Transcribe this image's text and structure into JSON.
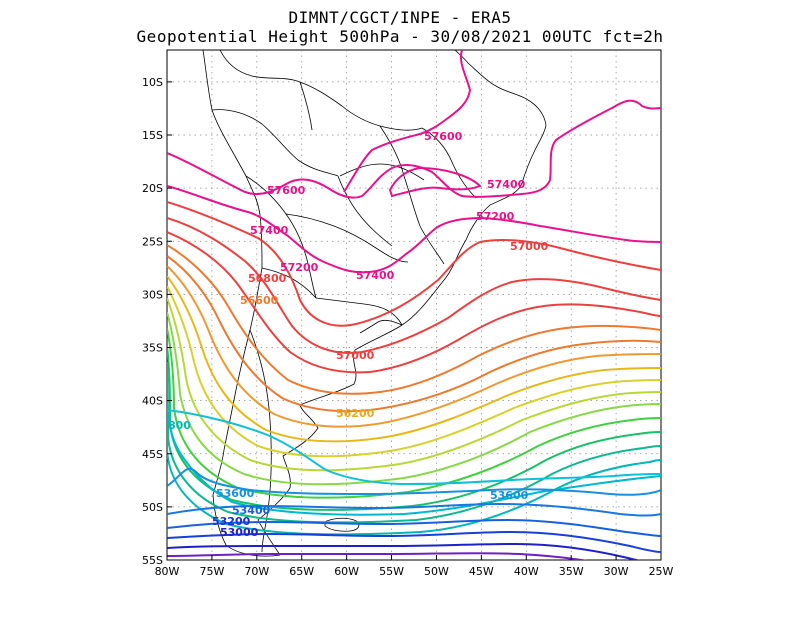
{
  "header": {
    "line1": "DIMNT/CGCT/INPE -  ERA5",
    "line2": "Geopotential Height 500hPa -  30/08/2021 00UTC fct=2h"
  },
  "map": {
    "lon_range": [
      -80,
      -25
    ],
    "lat_range": [
      -55,
      -7
    ],
    "x_ticks": [
      "80W",
      "75W",
      "70W",
      "65W",
      "60W",
      "55W",
      "50W",
      "45W",
      "40W",
      "35W",
      "30W",
      "25W"
    ],
    "y_ticks": [
      "10S",
      "15S",
      "20S",
      "25S",
      "30S",
      "35S",
      "40S",
      "45S",
      "50S",
      "55S"
    ],
    "grid": "dotted"
  },
  "contours": {
    "interval": 200,
    "labels": [
      "57600",
      "57600",
      "57400",
      "57400",
      "57400",
      "57200",
      "57200",
      "57000",
      "56800",
      "56600",
      "57000",
      "56200",
      "53600",
      "53600",
      "53400",
      "53200",
      "53000",
      "800"
    ],
    "colors": {
      "57600": "#e8128c",
      "57400": "#e8128c",
      "57200": "#e8128c",
      "57000": "#ec4040",
      "56800": "#ec4040",
      "56600": "#ee7a30",
      "56200": "#e8a818",
      "53600": "#1890e0",
      "53400": "#1860e0",
      "53200": "#1830d8",
      "53000": "#2020c8",
      "800": "#00b8b8"
    }
  }
}
